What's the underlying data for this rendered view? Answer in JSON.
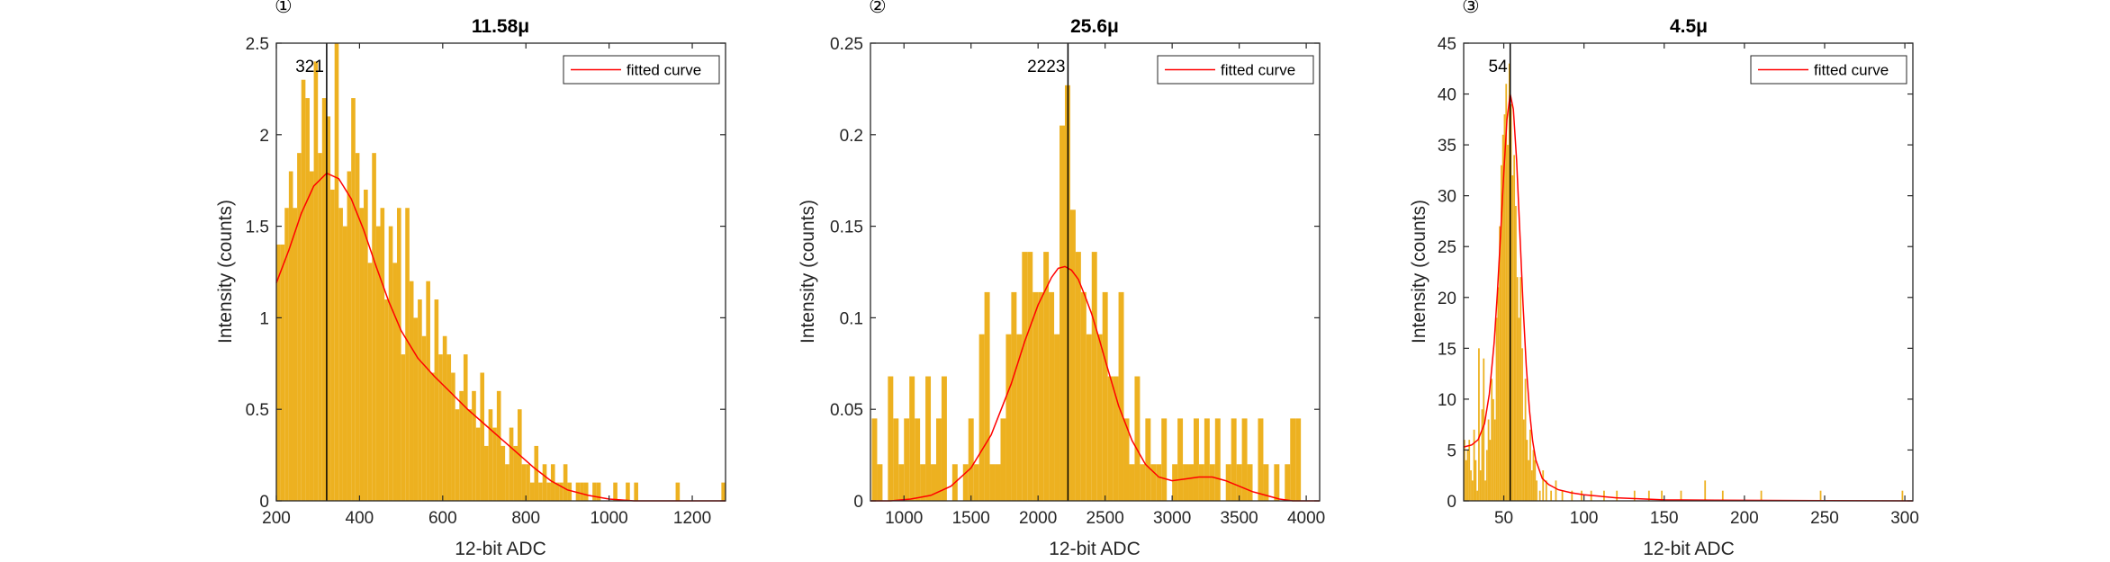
{
  "colors": {
    "bar": "#EDB120",
    "fit": "#FF0000",
    "peak_line": "#000000",
    "axis": "#262626"
  },
  "chart_data": [
    {
      "type": "bar",
      "panel_mark": "①",
      "title": "11.58μ",
      "xlabel": "12-bit ADC",
      "ylabel": "Intensity (counts)",
      "xlim": [
        200,
        1280
      ],
      "ylim": [
        0,
        2.5
      ],
      "xticks": [
        "200",
        "400",
        "600",
        "800",
        "1000",
        "1200"
      ],
      "yticks": [
        "0",
        "0.5",
        "1",
        "1.5",
        "2",
        "2.5"
      ],
      "peak": {
        "x": 321,
        "label": "321"
      },
      "legend": {
        "label": "fitted curve",
        "position": "top-right"
      },
      "bar_width": 10,
      "histogram": {
        "x": [
          205,
          215,
          225,
          235,
          245,
          255,
          265,
          275,
          285,
          295,
          305,
          315,
          325,
          335,
          345,
          355,
          365,
          375,
          385,
          395,
          405,
          415,
          425,
          435,
          445,
          455,
          465,
          475,
          485,
          495,
          505,
          515,
          525,
          535,
          545,
          555,
          565,
          575,
          585,
          595,
          605,
          615,
          625,
          635,
          645,
          655,
          665,
          675,
          685,
          695,
          705,
          715,
          725,
          735,
          745,
          755,
          765,
          775,
          785,
          795,
          805,
          815,
          825,
          835,
          845,
          855,
          865,
          875,
          885,
          895,
          905,
          915,
          925,
          935,
          945,
          955,
          965,
          975,
          985,
          995,
          1005,
          1015,
          1025,
          1035,
          1045,
          1055,
          1065,
          1075,
          1085,
          1095,
          1105,
          1115,
          1125,
          1135,
          1145,
          1155,
          1165,
          1175,
          1185,
          1195,
          1205,
          1215,
          1225,
          1235,
          1245,
          1255,
          1265,
          1275
        ],
        "counts": [
          1.4,
          1.4,
          1.6,
          1.8,
          1.6,
          1.9,
          2.3,
          2.2,
          1.8,
          2.4,
          1.9,
          2.2,
          2.1,
          1.7,
          2.5,
          1.6,
          1.5,
          1.8,
          2.2,
          1.9,
          1.6,
          1.7,
          1.3,
          1.9,
          1.5,
          1.6,
          1.1,
          1.5,
          1.3,
          1.6,
          0.8,
          1.6,
          1.2,
          1.0,
          1.1,
          0.9,
          1.2,
          0.7,
          1.1,
          0.8,
          0.9,
          0.8,
          0.7,
          0.5,
          0.6,
          0.8,
          0.5,
          0.6,
          0.4,
          0.7,
          0.3,
          0.5,
          0.4,
          0.6,
          0.3,
          0.2,
          0.4,
          0.3,
          0.5,
          0.2,
          0.2,
          0.1,
          0.3,
          0.1,
          0.2,
          0.1,
          0.2,
          0.1,
          0.1,
          0.2,
          0.1,
          0,
          0.1,
          0.1,
          0.1,
          0,
          0.1,
          0.1,
          0,
          0,
          0,
          0.1,
          0,
          0,
          0.1,
          0,
          0.1,
          0,
          0,
          0,
          0,
          0,
          0,
          0,
          0,
          0,
          0.1,
          0,
          0,
          0,
          0,
          0,
          0,
          0,
          0,
          0,
          0,
          0.1
        ]
      },
      "fit": {
        "x": [
          200,
          230,
          260,
          290,
          321,
          350,
          380,
          410,
          440,
          470,
          500,
          540,
          580,
          620,
          660,
          700,
          740,
          780,
          820,
          860,
          900,
          950,
          1000,
          1060,
          1120,
          1200,
          1280
        ],
        "y": [
          1.19,
          1.37,
          1.57,
          1.72,
          1.79,
          1.76,
          1.65,
          1.48,
          1.28,
          1.09,
          0.93,
          0.78,
          0.68,
          0.59,
          0.5,
          0.42,
          0.34,
          0.26,
          0.18,
          0.11,
          0.06,
          0.03,
          0.01,
          0.0,
          0.0,
          0.0,
          0.0
        ]
      }
    },
    {
      "type": "bar",
      "panel_mark": "②",
      "title": "25.6μ",
      "xlabel": "12-bit ADC",
      "ylabel": "Intensity (counts)",
      "xlim": [
        750,
        4100
      ],
      "ylim": [
        0,
        0.25
      ],
      "xticks": [
        "1000",
        "1500",
        "2000",
        "2500",
        "3000",
        "3500",
        "4000"
      ],
      "yticks": [
        "0",
        "0.05",
        "0.1",
        "0.15",
        "0.2",
        "0.25"
      ],
      "peak": {
        "x": 2223,
        "label": "2223"
      },
      "legend": {
        "label": "fitted curve",
        "position": "top-right"
      },
      "bar_width": 40,
      "histogram": {
        "x": [
          780,
          820,
          860,
          900,
          940,
          980,
          1020,
          1060,
          1100,
          1140,
          1180,
          1220,
          1260,
          1300,
          1340,
          1380,
          1420,
          1460,
          1500,
          1540,
          1580,
          1620,
          1660,
          1700,
          1740,
          1780,
          1820,
          1860,
          1900,
          1940,
          1980,
          2020,
          2060,
          2100,
          2140,
          2180,
          2220,
          2260,
          2300,
          2340,
          2380,
          2420,
          2460,
          2500,
          2540,
          2580,
          2620,
          2660,
          2700,
          2740,
          2780,
          2820,
          2860,
          2900,
          2940,
          2980,
          3020,
          3060,
          3100,
          3140,
          3180,
          3220,
          3260,
          3300,
          3340,
          3380,
          3420,
          3460,
          3500,
          3540,
          3580,
          3620,
          3660,
          3700,
          3740,
          3780,
          3820,
          3860,
          3900,
          3940
        ],
        "counts": [
          0.045,
          0.02,
          0,
          0.068,
          0.045,
          0.02,
          0.045,
          0.068,
          0.045,
          0.02,
          0.068,
          0.02,
          0.045,
          0.068,
          0,
          0.02,
          0,
          0.02,
          0.045,
          0.02,
          0.091,
          0.114,
          0.02,
          0.02,
          0.045,
          0.091,
          0.114,
          0.091,
          0.136,
          0.136,
          0.114,
          0.114,
          0.136,
          0.114,
          0.091,
          0.205,
          0.227,
          0.159,
          0.136,
          0.114,
          0.091,
          0.136,
          0.091,
          0.114,
          0.068,
          0.068,
          0.114,
          0.045,
          0.02,
          0.068,
          0.02,
          0.045,
          0.02,
          0.02,
          0.045,
          0,
          0.02,
          0.045,
          0.02,
          0.02,
          0.045,
          0.02,
          0.045,
          0.02,
          0.045,
          0,
          0.02,
          0.045,
          0.02,
          0.045,
          0.02,
          0,
          0.045,
          0.02,
          0,
          0.02,
          0,
          0.02,
          0.045,
          0.045
        ]
      },
      "fit": {
        "x": [
          750,
          900,
          1050,
          1200,
          1350,
          1500,
          1650,
          1800,
          1900,
          2000,
          2100,
          2150,
          2200,
          2250,
          2300,
          2350,
          2400,
          2450,
          2500,
          2600,
          2700,
          2800,
          2900,
          3000,
          3100,
          3200,
          3300,
          3400,
          3500,
          3600,
          3700,
          3800,
          3900,
          4000,
          4100
        ],
        "y": [
          0.0,
          0.0,
          0.001,
          0.003,
          0.008,
          0.018,
          0.036,
          0.064,
          0.087,
          0.107,
          0.122,
          0.127,
          0.128,
          0.126,
          0.121,
          0.112,
          0.102,
          0.09,
          0.077,
          0.052,
          0.033,
          0.02,
          0.013,
          0.011,
          0.012,
          0.013,
          0.013,
          0.011,
          0.008,
          0.005,
          0.003,
          0.001,
          0.0,
          0.0,
          0.0
        ]
      }
    },
    {
      "type": "bar",
      "panel_mark": "③",
      "title": "4.5μ",
      "xlabel": "12-bit ADC",
      "ylabel": "Intensity (counts)",
      "xlim": [
        25,
        305
      ],
      "ylim": [
        0,
        45
      ],
      "xticks": [
        "50",
        "100",
        "150",
        "200",
        "250",
        "300"
      ],
      "yticks": [
        "0",
        "5",
        "10",
        "15",
        "20",
        "25",
        "30",
        "35",
        "40",
        "45"
      ],
      "peak": {
        "x": 54,
        "label": "54"
      },
      "legend": {
        "label": "fitted curve",
        "position": "top-right"
      },
      "bar_width": 1,
      "histogram": {
        "x": [
          25.5,
          26.5,
          27.5,
          28.5,
          29.5,
          30.5,
          31.5,
          32.5,
          33.5,
          34.5,
          35.5,
          36.5,
          37.5,
          38.5,
          39.5,
          40.5,
          41.5,
          42.5,
          43.5,
          44.5,
          45.5,
          46.5,
          47.5,
          48.5,
          49.5,
          50.5,
          51.5,
          52.5,
          53.5,
          54.5,
          55.5,
          56.5,
          57.5,
          58.5,
          59.5,
          60.5,
          61.5,
          62.5,
          63.5,
          64.5,
          65.5,
          66.5,
          67.5,
          68.5,
          69.5,
          70.5,
          72.5,
          74.5,
          76.5,
          79.5,
          82.5,
          86.5,
          92.5,
          98.5,
          104.5,
          112.5,
          120.5,
          131.5,
          140.5,
          148.5,
          160.5,
          175.5,
          186.5,
          210.5,
          247.5,
          298.5
        ],
        "counts": [
          6,
          4,
          5,
          6,
          3,
          2,
          7,
          4,
          1,
          15,
          3,
          9,
          14,
          2,
          5,
          8,
          6,
          12,
          10,
          8,
          18,
          21,
          27,
          33,
          36,
          38,
          41,
          35,
          43,
          39,
          32,
          34,
          29,
          22,
          18,
          22,
          15,
          8,
          12,
          6,
          4,
          7,
          3,
          5,
          4,
          2,
          1,
          3,
          2,
          1,
          2,
          1,
          1,
          1,
          1,
          1,
          1,
          1,
          1,
          1,
          1,
          2,
          1,
          1,
          1,
          1
        ]
      },
      "fit": {
        "x": [
          25,
          30,
          34,
          38,
          41,
          44,
          46,
          48,
          50,
          52,
          54,
          56,
          58,
          60,
          62,
          64,
          66,
          68,
          70,
          74,
          78,
          84,
          92,
          100,
          120,
          150,
          200,
          250,
          305
        ],
        "y": [
          5.3,
          5.5,
          6.0,
          7.6,
          10.5,
          15.6,
          20.4,
          26.2,
          32.3,
          37.5,
          40.0,
          38.5,
          33.5,
          26.4,
          19.4,
          13.3,
          8.9,
          5.9,
          4.0,
          2.2,
          1.6,
          1.1,
          0.8,
          0.6,
          0.3,
          0.1,
          0.05,
          0.02,
          0.0
        ]
      }
    }
  ]
}
